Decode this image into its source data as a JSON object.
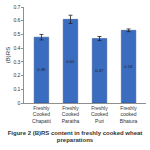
{
  "chart_data": {
    "type": "bar",
    "title": "Figure 2 (B)RS content in freshly cooked wheat preparations",
    "y_label": "(B)RS",
    "categories": [
      "Freshly Cooked Chapatti",
      "Freshly Cooked Paratha",
      "Freshly Cooked Puri",
      "Freshly cooked Bhatura"
    ],
    "values": [
      0.48,
      0.61,
      0.47,
      0.53
    ],
    "errors": [
      0.02,
      0.03,
      0.015,
      0.01
    ],
    "color": "#3a6cc0",
    "ylim": [
      0,
      0.7
    ],
    "yticks": [
      0,
      0.1,
      0.2,
      0.3,
      0.4,
      0.5,
      0.6,
      0.7
    ],
    "grid": false,
    "data_labels": true
  }
}
